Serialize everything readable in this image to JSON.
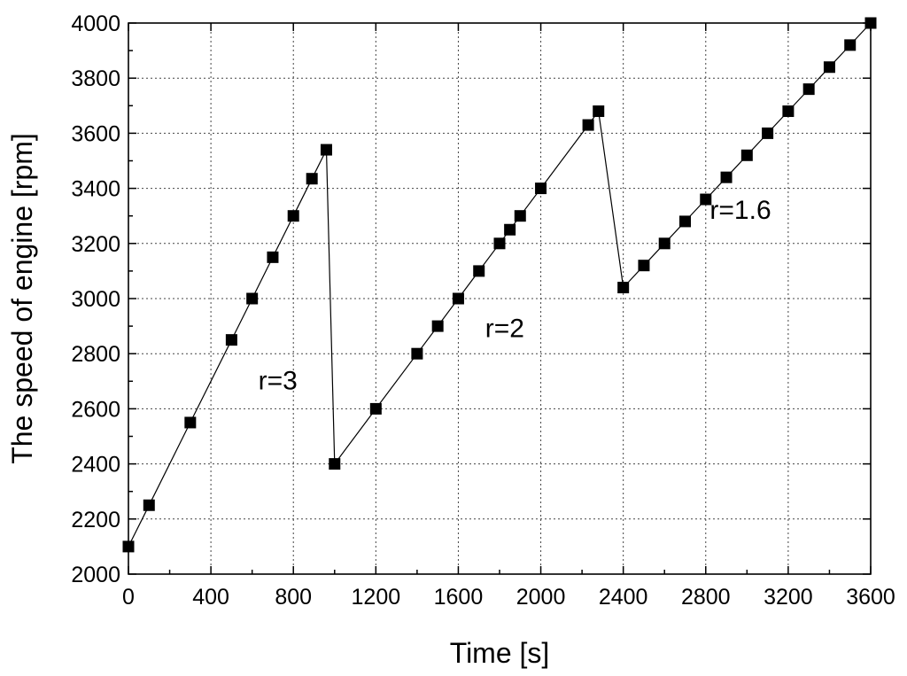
{
  "chart_data": {
    "type": "line",
    "title": "",
    "xlabel": "Time [s]",
    "ylabel": "The speed of engine [rpm]",
    "xlim": [
      0,
      3600
    ],
    "ylim": [
      2000,
      4000
    ],
    "xticks": [
      0,
      400,
      800,
      1200,
      1600,
      2000,
      2400,
      2800,
      3200,
      3600
    ],
    "yticks": [
      2000,
      2200,
      2400,
      2600,
      2800,
      3000,
      3200,
      3400,
      3600,
      3800,
      4000
    ],
    "grid": true,
    "marker": "square",
    "series": [
      {
        "x": [
          0,
          100,
          300,
          500,
          600,
          700,
          800,
          890,
          960,
          1000,
          1200,
          1400,
          1500,
          1600,
          1700,
          1800,
          1850,
          1900,
          2000,
          2230,
          2280,
          2400,
          2500,
          2600,
          2700,
          2800,
          2900,
          3000,
          3100,
          3200,
          3300,
          3400,
          3500,
          3600
        ],
        "y": [
          2100,
          2250,
          2550,
          2850,
          3000,
          3150,
          3300,
          3435,
          3540,
          2400,
          2600,
          2800,
          2900,
          3000,
          3100,
          3200,
          3250,
          3300,
          3400,
          3630,
          3680,
          3040,
          3120,
          3200,
          3280,
          3360,
          3440,
          3520,
          3600,
          3680,
          3760,
          3840,
          3920,
          4000
        ]
      }
    ],
    "annotations": [
      {
        "text": "r=3",
        "x": 630,
        "y": 2670
      },
      {
        "text": "r=2",
        "x": 1730,
        "y": 2860
      },
      {
        "text": "r=1.6",
        "x": 2820,
        "y": 3290
      }
    ]
  }
}
